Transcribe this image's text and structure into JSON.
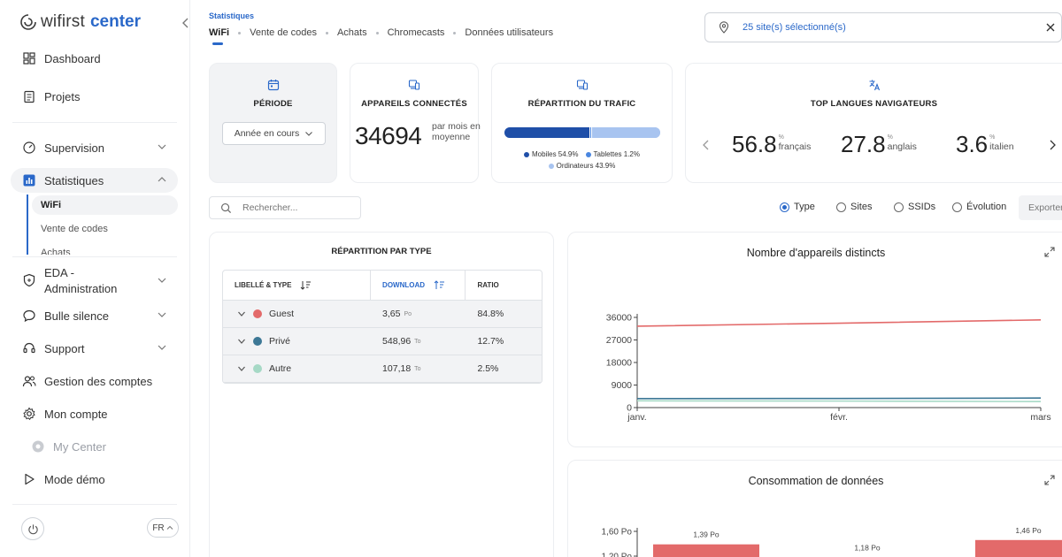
{
  "sidebar": {
    "logo_brand": "wifirst",
    "logo_center": "center",
    "items": [
      {
        "label": "Dashboard"
      },
      {
        "label": "Projets"
      },
      {
        "label": "Supervision"
      },
      {
        "label": "Statistiques"
      },
      {
        "label": "EDA - Administration"
      },
      {
        "label": "Bulle silence"
      },
      {
        "label": "Support"
      },
      {
        "label": "Gestion des comptes"
      },
      {
        "label": "Mon compte"
      },
      {
        "label": "My Center"
      },
      {
        "label": "Mode démo"
      }
    ],
    "sub_items": [
      {
        "label": "WiFi"
      },
      {
        "label": "Vente de codes"
      },
      {
        "label": "Achats"
      }
    ],
    "language": "FR"
  },
  "header": {
    "breadcrumb": "Statistiques",
    "tabs": [
      {
        "label": "WiFi"
      },
      {
        "label": "Vente de codes"
      },
      {
        "label": "Achats"
      },
      {
        "label": "Chromecasts"
      },
      {
        "label": "Données utilisateurs"
      }
    ],
    "site_selector": "25 site(s) sélectionné(s)"
  },
  "kpis": {
    "period": {
      "title": "PÉRIODE",
      "value": "Année en cours"
    },
    "devices": {
      "title": "APPAREILS CONNECTÉS",
      "value": "34694",
      "caption": "par mois en moyenne"
    },
    "traffic": {
      "title": "RÉPARTITION DU TRAFIC",
      "segments": [
        {
          "label": "Mobiles 54.9%",
          "value": 54.9,
          "color": "#1f4fa8"
        },
        {
          "label": "Tablettes 1.2%",
          "value": 1.2,
          "color": "#4a86e0"
        },
        {
          "label": "Ordinateurs 43.9%",
          "value": 43.9,
          "color": "#a8c4f0"
        }
      ]
    },
    "languages": {
      "title": "TOP LANGUES NAVIGATEURS",
      "unit": "%",
      "items": [
        {
          "value": "56.8",
          "name": "français"
        },
        {
          "value": "27.8",
          "name": "anglais"
        },
        {
          "value": "3.6",
          "name": "italien"
        }
      ]
    }
  },
  "filters": {
    "search_placeholder": "Rechercher...",
    "options": [
      {
        "label": "Type",
        "selected": true
      },
      {
        "label": "Sites",
        "selected": false
      },
      {
        "label": "SSIDs",
        "selected": false
      },
      {
        "label": "Évolution",
        "selected": false
      }
    ],
    "export_label": "Exporter"
  },
  "type_table": {
    "title": "RÉPARTITION PAR TYPE",
    "headers": [
      "LIBELLÉ & TYPE",
      "DOWNLOAD",
      "RATIO"
    ],
    "rows": [
      {
        "label": "Guest",
        "color": "#e36a6a",
        "download": "3,65",
        "unit": "Po",
        "ratio": "84.8%"
      },
      {
        "label": "Privé",
        "color": "#3d7896",
        "download": "548,96",
        "unit": "To",
        "ratio": "12.7%"
      },
      {
        "label": "Autre",
        "color": "#a6d9c6",
        "download": "107,18",
        "unit": "To",
        "ratio": "2.5%"
      }
    ]
  },
  "chart_data": [
    {
      "type": "line",
      "title": "Nombre d'appareils distincts",
      "categories": [
        "janv.",
        "févr.",
        "mars"
      ],
      "y_ticks": [
        "36000",
        "27000",
        "18000",
        "9000",
        "0"
      ],
      "ylim": [
        0,
        36000
      ],
      "series": [
        {
          "color": "#e36a6a",
          "values": [
            32500,
            33700,
            35000
          ]
        },
        {
          "color": "#3d7896",
          "values": [
            3600,
            3650,
            3800
          ]
        },
        {
          "color": "#a6d9c6",
          "values": [
            2700,
            2600,
            2400
          ]
        }
      ]
    },
    {
      "type": "bar",
      "title": "Consommation de données",
      "y_ticks": [
        "1,60 Po",
        "1,20 Po"
      ],
      "ylim": [
        0,
        1.6
      ],
      "bars": [
        {
          "value": 1.39,
          "label": "1,39 Po"
        },
        {
          "value": 1.18,
          "label": "1,18 Po"
        },
        {
          "value": 1.46,
          "label": "1,46 Po"
        }
      ]
    }
  ]
}
